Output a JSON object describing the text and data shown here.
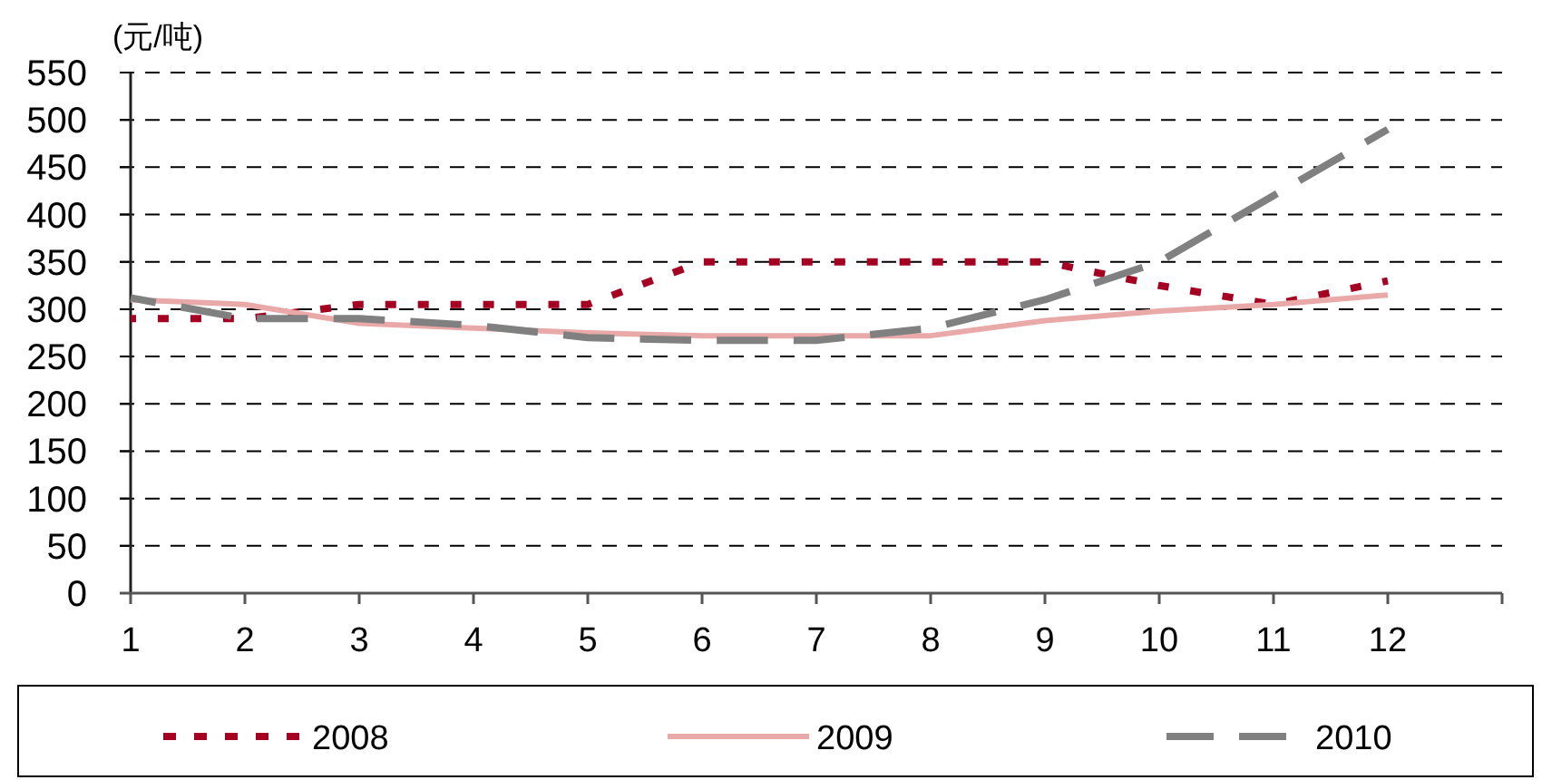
{
  "chart_data": {
    "type": "line",
    "ylabel": "(元/吨)",
    "x": [
      1,
      2,
      3,
      4,
      5,
      6,
      7,
      8,
      9,
      10,
      11,
      12
    ],
    "xlim": [
      1,
      13
    ],
    "xticks": [
      1,
      2,
      3,
      4,
      5,
      6,
      7,
      8,
      9,
      10,
      11,
      12,
      {
        "value": 13,
        "label": null
      }
    ],
    "ylim": [
      0,
      550
    ],
    "yticks": [
      0,
      50,
      100,
      150,
      200,
      250,
      300,
      350,
      400,
      450,
      500,
      550
    ],
    "grid": "y",
    "legend": "bottom",
    "series": [
      {
        "name": "2008",
        "color": "#a50021",
        "line_style": "dotted",
        "values": [
          290,
          290,
          305,
          305,
          305,
          350,
          350,
          350,
          350,
          325,
          305,
          330
        ]
      },
      {
        "name": "2009",
        "color": "#eaa9a9",
        "line_style": "solid",
        "values": [
          310,
          305,
          285,
          280,
          275,
          272,
          272,
          272,
          288,
          298,
          305,
          315
        ]
      },
      {
        "name": "2010",
        "color": "#808080",
        "line_style": "dashed",
        "values": [
          312,
          290,
          290,
          283,
          270,
          267,
          267,
          280,
          310,
          350,
          420,
          490
        ]
      }
    ]
  }
}
